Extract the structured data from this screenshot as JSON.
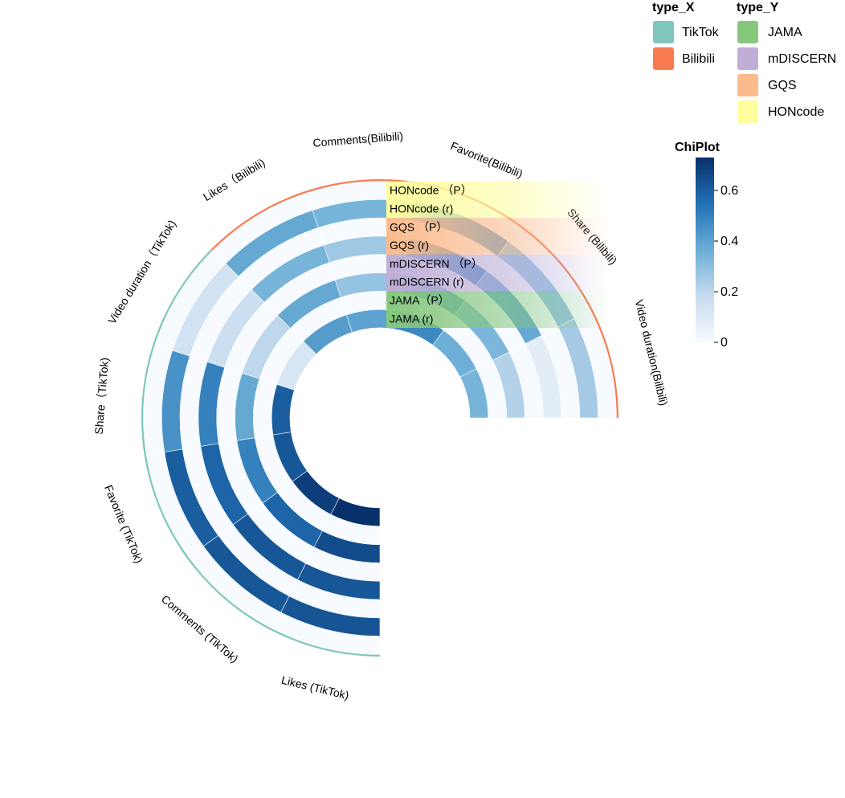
{
  "chart_data": {
    "type": "heatmap",
    "layout": "circular",
    "rows": [
      "HONcode (P)",
      "HONcode (r)",
      "GQS (P)",
      "GQS (r)",
      "mDISCERN (P)",
      "mDISCERN (r)",
      "JAMA (P)",
      "JAMA (r)"
    ],
    "row_labels": [
      "HONcode （P）",
      "HONcode (r)",
      "GQS （P）",
      "GQS (r)",
      "mDISCERN （P）",
      "mDISCERN (r)",
      "JAMA（P）",
      "JAMA (r)"
    ],
    "row_group": [
      "HONcode",
      "HONcode",
      "GQS",
      "GQS",
      "mDISCERN",
      "mDISCERN",
      "JAMA",
      "JAMA"
    ],
    "columns": [
      "Likes (TikTok)",
      "Comments (TikTok)",
      "Favorite (TikTok)",
      "Share（TikTok)",
      "Video duration（TikTok)",
      "Likes（Bilibili)",
      "Comments(Bilibili)",
      "Favorite(Bilibili)",
      "Share (Bilibili)",
      "Video duration(Bilibili)"
    ],
    "column_group": [
      "TikTok",
      "TikTok",
      "TikTok",
      "TikTok",
      "TikTok",
      "Bilibili",
      "Bilibili",
      "Bilibili",
      "Bilibili",
      "Bilibili"
    ],
    "values": [
      [
        0.0,
        0.0,
        0.0,
        0.0,
        0.0,
        0.0,
        0.0,
        0.0,
        0.0,
        0.0
      ],
      [
        0.63,
        0.62,
        0.6,
        0.45,
        0.14,
        0.38,
        0.34,
        0.42,
        0.28,
        0.25
      ],
      [
        0.0,
        0.0,
        0.0,
        0.0,
        0.0,
        0.0,
        0.0,
        0.0,
        0.0,
        0.0
      ],
      [
        0.62,
        0.62,
        0.58,
        0.5,
        0.16,
        0.34,
        0.26,
        0.52,
        0.38,
        0.08
      ],
      [
        0.0,
        0.0,
        0.0,
        0.0,
        0.0,
        0.0,
        0.0,
        0.0,
        0.0,
        0.0
      ],
      [
        0.65,
        0.58,
        0.5,
        0.38,
        0.2,
        0.38,
        0.28,
        0.42,
        0.33,
        0.22
      ],
      [
        0.0,
        0.0,
        0.0,
        0.0,
        0.0,
        0.0,
        0.0,
        0.0,
        0.0,
        0.0
      ],
      [
        0.73,
        0.69,
        0.62,
        0.6,
        0.12,
        0.42,
        0.4,
        0.48,
        0.36,
        0.34
      ]
    ],
    "colorbar": {
      "title": "ChiPlot",
      "min": 0,
      "max": 0.73,
      "ticks": [
        "0",
        "0.2",
        "0.4",
        "0.6"
      ],
      "tick_values": [
        0,
        0.2,
        0.4,
        0.6
      ],
      "colors": [
        "#f7fbff",
        "#c6dbef",
        "#6baed6",
        "#2171b5",
        "#08306b"
      ]
    },
    "legend_x": {
      "title": "type_X",
      "items": [
        {
          "label": "TikTok",
          "color": "#7fc6bd"
        },
        {
          "label": "Bilibili",
          "color": "#f97b53"
        }
      ]
    },
    "legend_y": {
      "title": "type_Y",
      "items": [
        {
          "label": "JAMA",
          "color": "#86c77d"
        },
        {
          "label": "mDISCERN",
          "color": "#bfaed6"
        },
        {
          "label": "GQS",
          "color": "#fcbb8d"
        },
        {
          "label": "HONcode",
          "color": "#fefe9d"
        }
      ]
    }
  }
}
